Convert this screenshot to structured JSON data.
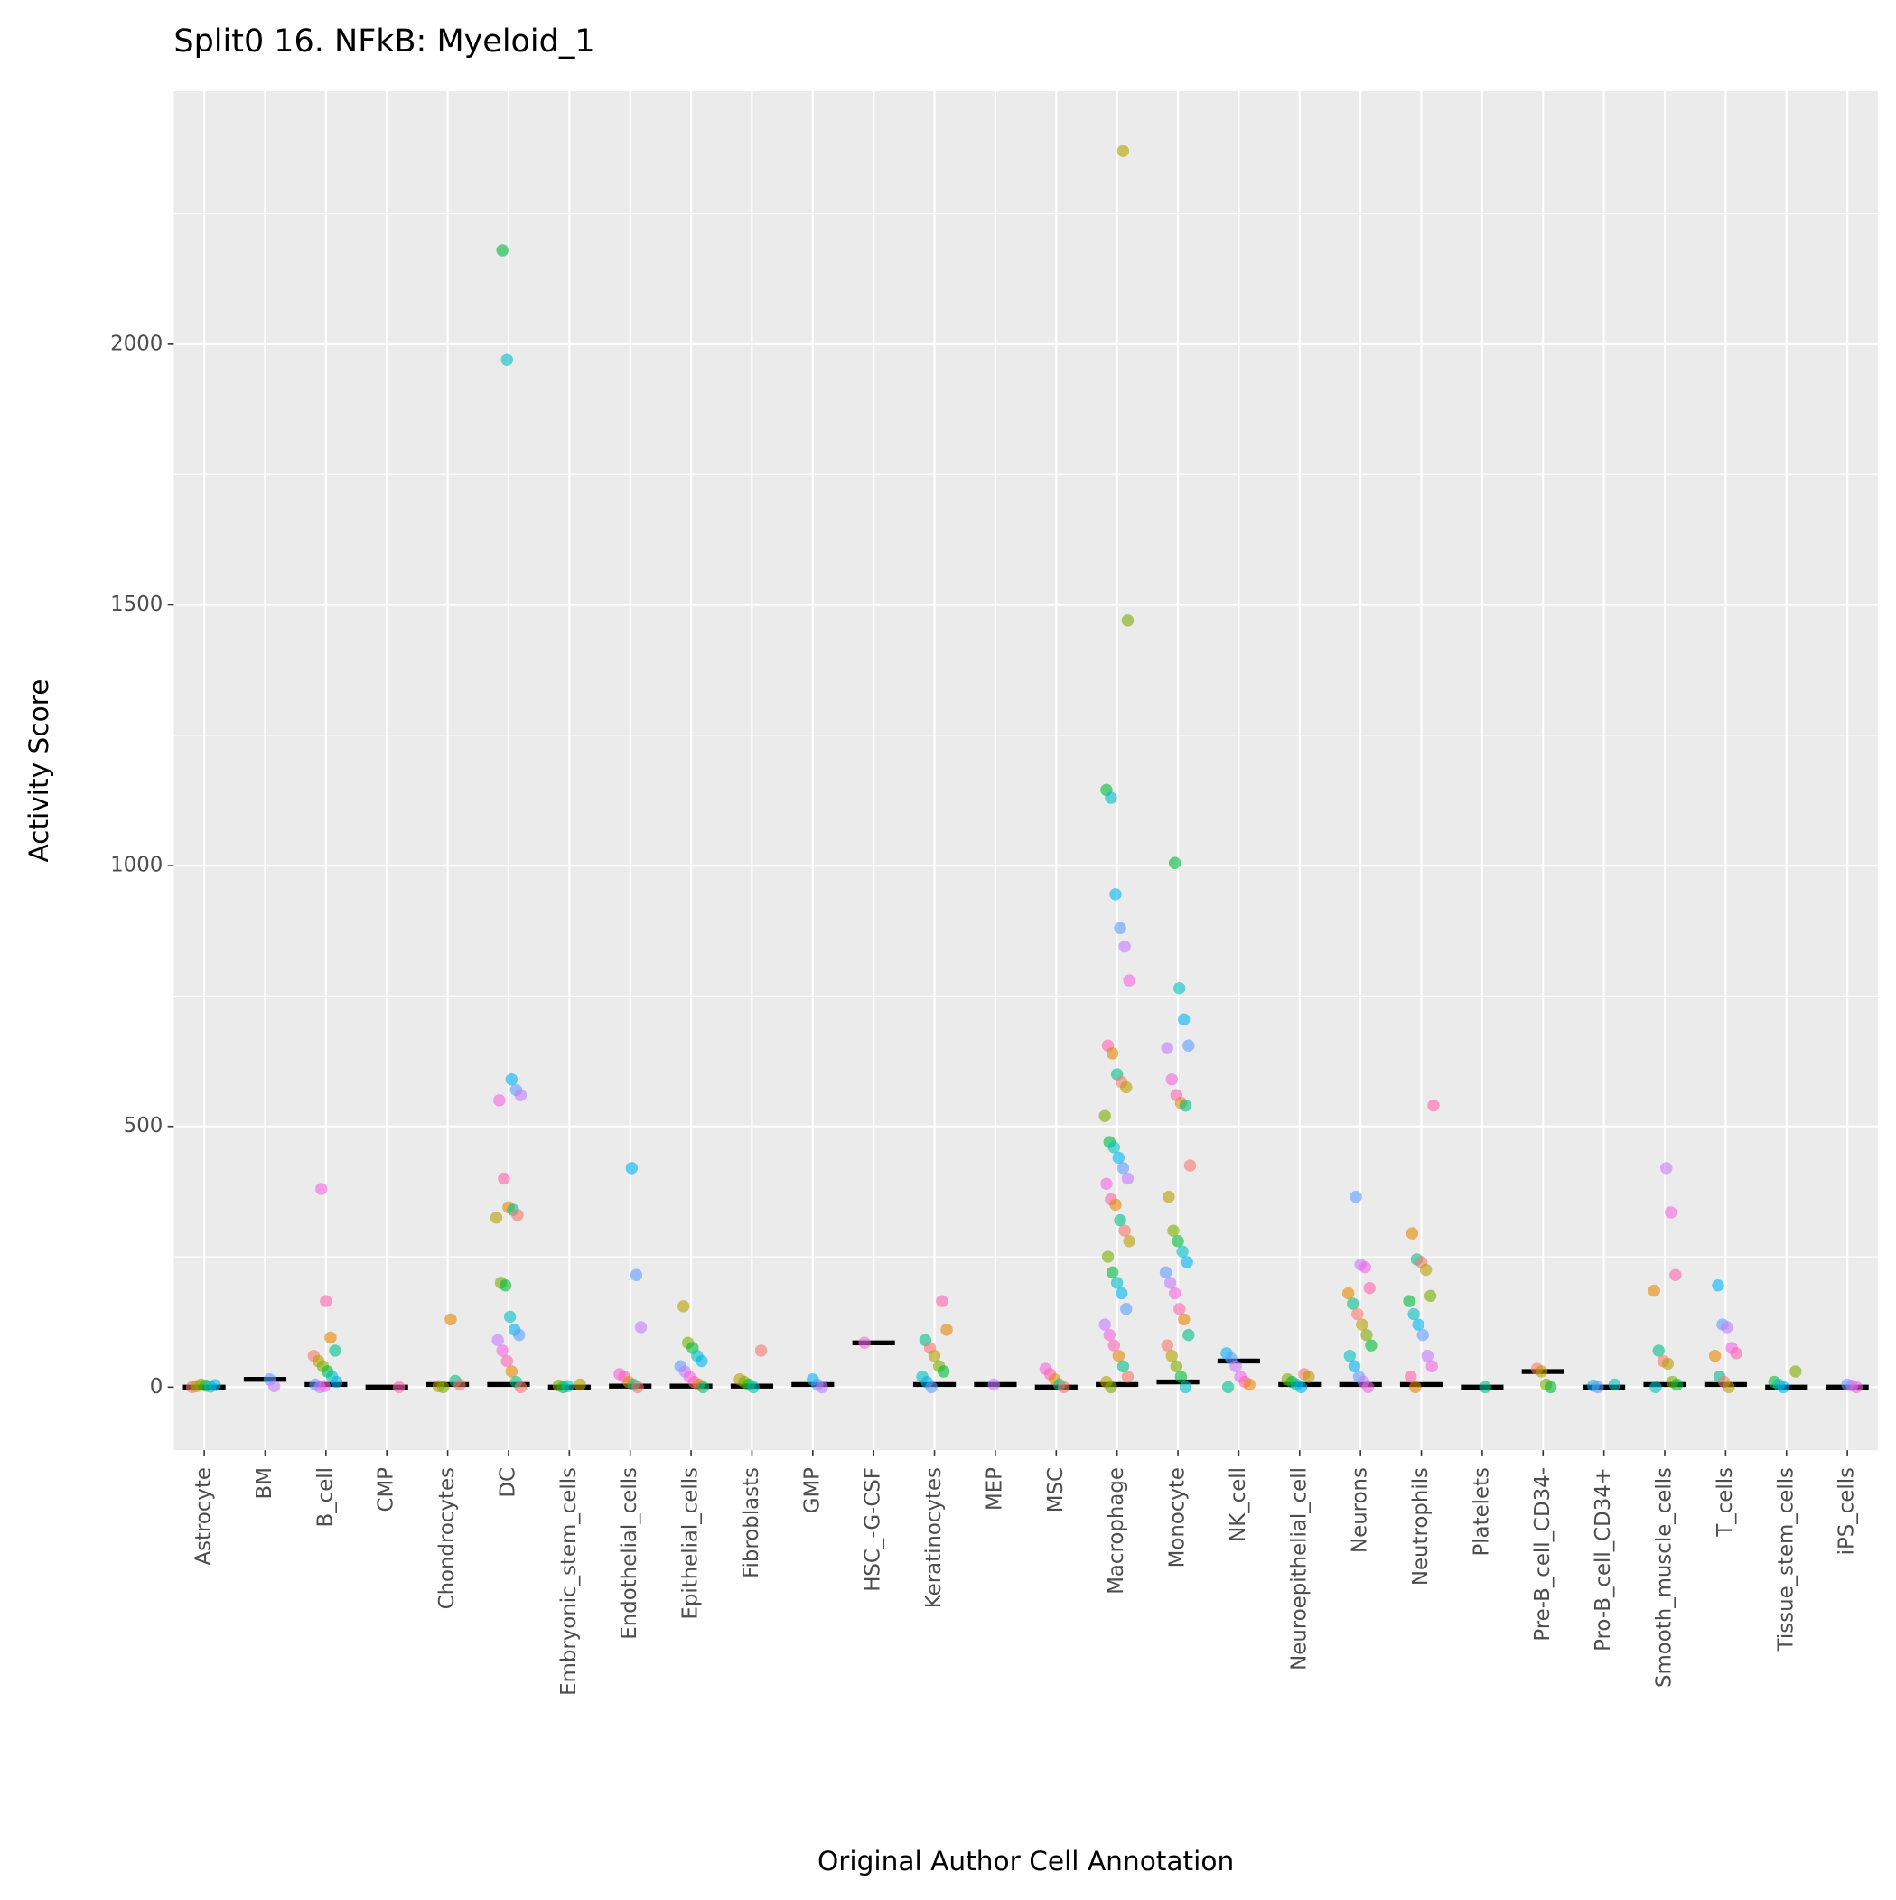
{
  "chart_data": {
    "type": "strip",
    "title": "Split0 16. NFkB: Myeloid_1",
    "x_label": "Original Author Cell Annotation",
    "y_label": "Activity Score",
    "categories": [
      "Astrocyte",
      "BM",
      "B_cell",
      "CMP",
      "Chondrocytes",
      "DC",
      "Embryonic_stem_cells",
      "Endothelial_cells",
      "Epithelial_cells",
      "Fibroblasts",
      "GMP",
      "HSC_-G-CSF",
      "Keratinocytes",
      "MEP",
      "MSC",
      "Macrophage",
      "Monocyte",
      "NK_cell",
      "Neuroepithelial_cell",
      "Neurons",
      "Neutrophils",
      "Platelets",
      "Pre-B_cell_CD34-",
      "Pro-B_cell_CD34+",
      "Smooth_muscle_cells",
      "T_cells",
      "Tissue_stem_cells",
      "iPS_cells"
    ],
    "values": [
      [
        0,
        2,
        5,
        3,
        1,
        4
      ],
      [
        15,
        2
      ],
      [
        380,
        165,
        95,
        70,
        60,
        50,
        40,
        30,
        20,
        10,
        5,
        0,
        2
      ],
      [
        0
      ],
      [
        130,
        12,
        5,
        2,
        0
      ],
      [
        2180,
        1970,
        590,
        570,
        560,
        550,
        400,
        345,
        340,
        330,
        325,
        200,
        195,
        135,
        110,
        100,
        90,
        70,
        50,
        30,
        10,
        0
      ],
      [
        5,
        3,
        0,
        2
      ],
      [
        420,
        215,
        115,
        25,
        20,
        10,
        5,
        0
      ],
      [
        155,
        85,
        75,
        60,
        50,
        40,
        30,
        20,
        10,
        5,
        0
      ],
      [
        70,
        15,
        10,
        5,
        0
      ],
      [
        15,
        5,
        0
      ],
      [
        85
      ],
      [
        165,
        110,
        90,
        75,
        60,
        40,
        30,
        20,
        10,
        0
      ],
      [
        5
      ],
      [
        35,
        25,
        15,
        5,
        0
      ],
      [
        2370,
        1470,
        1145,
        1130,
        945,
        880,
        845,
        780,
        655,
        640,
        600,
        585,
        575,
        520,
        470,
        460,
        440,
        420,
        400,
        390,
        360,
        350,
        320,
        300,
        280,
        250,
        220,
        200,
        180,
        150,
        120,
        100,
        80,
        60,
        40,
        20,
        10,
        0
      ],
      [
        1005,
        765,
        705,
        655,
        650,
        590,
        560,
        545,
        540,
        425,
        365,
        300,
        280,
        260,
        240,
        220,
        200,
        180,
        150,
        130,
        100,
        80,
        60,
        40,
        20,
        0
      ],
      [
        65,
        55,
        40,
        20,
        10,
        5,
        0
      ],
      [
        25,
        20,
        15,
        10,
        5,
        0
      ],
      [
        365,
        235,
        230,
        190,
        180,
        160,
        140,
        120,
        100,
        80,
        60,
        40,
        20,
        10,
        0
      ],
      [
        540,
        295,
        245,
        240,
        225,
        175,
        165,
        140,
        120,
        100,
        60,
        40,
        20,
        0
      ],
      [
        0
      ],
      [
        35,
        30,
        5,
        0
      ],
      [
        5,
        3,
        0
      ],
      [
        420,
        335,
        215,
        185,
        70,
        50,
        45,
        10,
        5,
        0
      ],
      [
        195,
        120,
        115,
        75,
        65,
        60,
        20,
        10,
        0
      ],
      [
        30,
        10,
        5,
        0
      ],
      [
        5,
        3,
        0
      ]
    ],
    "medians": [
      0,
      15,
      5,
      0,
      5,
      5,
      0,
      2,
      2,
      2,
      5,
      85,
      5,
      5,
      0,
      5,
      10,
      50,
      5,
      5,
      5,
      0,
      30,
      0,
      5,
      5,
      0,
      0
    ],
    "colors": [
      "#F8766D",
      "#B79F00",
      "#7CAE00",
      "#00BA38",
      "#00BFC4",
      "#00B4F0",
      "#619CFF",
      "#C77CFF",
      "#F564E3",
      "#FF64B0",
      "#E58700",
      "#00C08B"
    ],
    "ylim": [
      -121,
      2485
    ],
    "yticks": [
      0,
      500,
      1000,
      1500,
      2000
    ],
    "grid": true
  }
}
